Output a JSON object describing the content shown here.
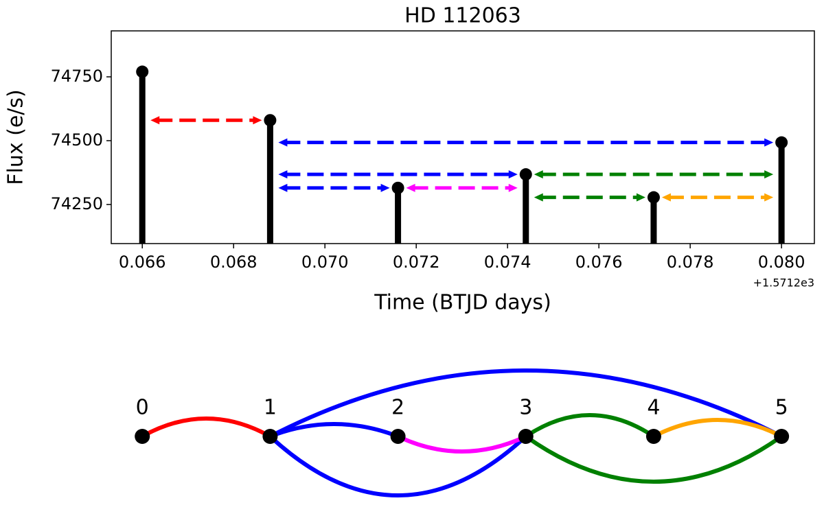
{
  "chart_data": [
    {
      "type": "stem",
      "title": "HD 112063",
      "xlabel": "Time (BTJD days)",
      "ylabel": "Flux (e/s)",
      "x_offset_label": "+1.5712e3",
      "x": [
        0.066,
        0.0688,
        0.0716,
        0.0744,
        0.0772,
        0.08
      ],
      "values": [
        74770,
        74580,
        74315,
        74368,
        74278,
        74493
      ],
      "color": "#000000",
      "xlim": [
        0.06532,
        0.08072
      ],
      "ylim": [
        74097,
        74930
      ],
      "xticks": [
        0.066,
        0.068,
        {
          "value": 0.07,
          "label": "0.070"
        },
        0.072,
        0.074,
        0.076,
        0.078,
        {
          "value": 0.08,
          "label": "0.080"
        }
      ],
      "yticks": [
        74250,
        74500,
        74750
      ]
    },
    {
      "type": "graph",
      "nodes": [
        "0",
        "1",
        "2",
        "3",
        "4",
        "5"
      ],
      "node_color": "#000000",
      "edges": [
        {
          "source": 0,
          "target": 1,
          "color": "#ff0000"
        },
        {
          "source": 1,
          "target": 5,
          "color": "#0000ff"
        },
        {
          "source": 1,
          "target": 3,
          "color": "#0000ff"
        },
        {
          "source": 1,
          "target": 2,
          "color": "#0000ff"
        },
        {
          "source": 2,
          "target": 3,
          "color": "#ff00ff"
        },
        {
          "source": 3,
          "target": 5,
          "color": "#008000"
        },
        {
          "source": 3,
          "target": 4,
          "color": "#008000"
        },
        {
          "source": 4,
          "target": 5,
          "color": "#ffa500"
        }
      ]
    }
  ]
}
